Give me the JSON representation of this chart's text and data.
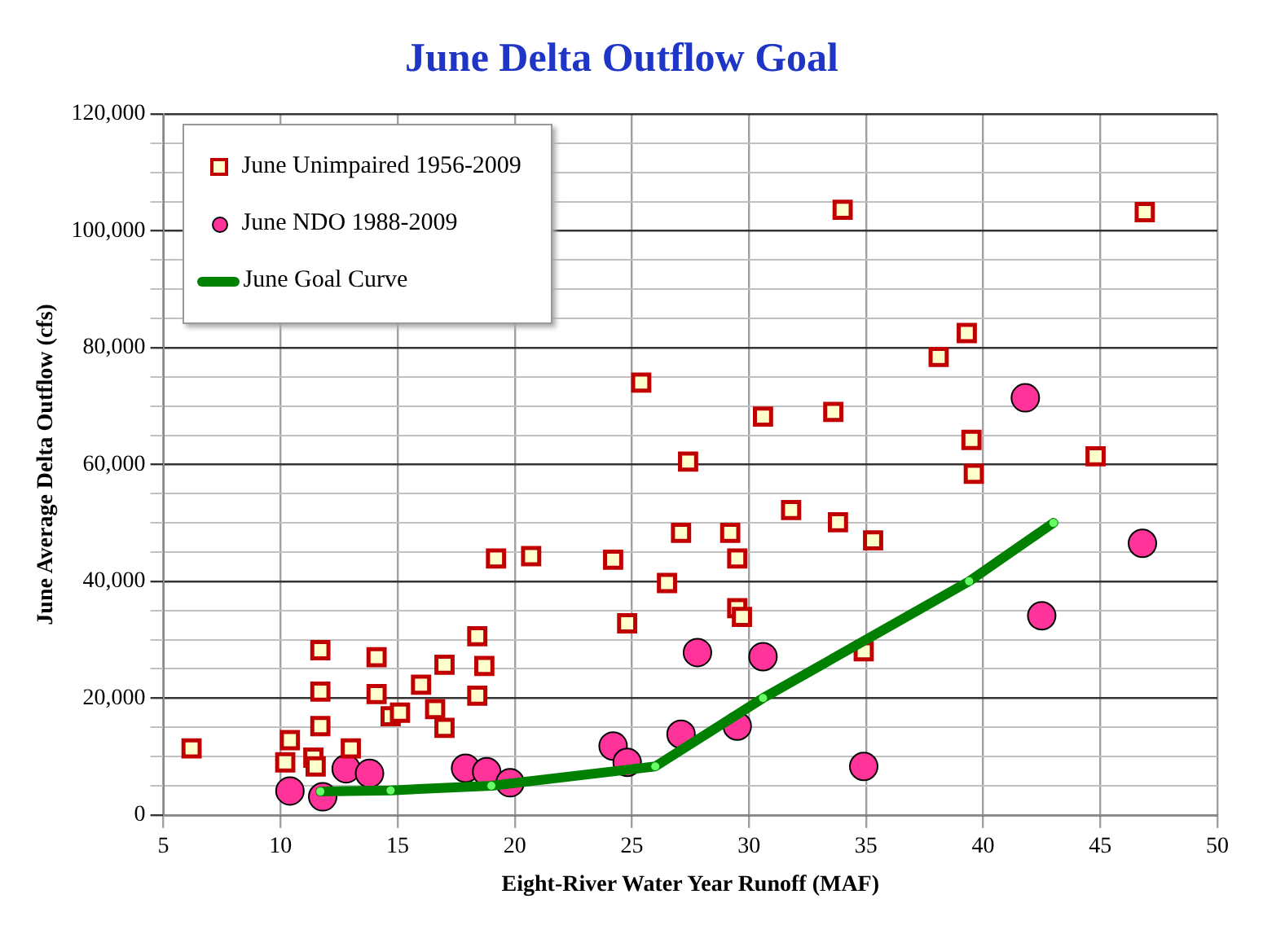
{
  "chart_data": {
    "type": "scatter",
    "title": "June Delta Outflow Goal",
    "xlabel": "Eight-River Water Year Runoff (MAF)",
    "ylabel": "June Average Delta Outflow (cfs)",
    "xlim": [
      5,
      50
    ],
    "xticks": [
      5,
      10,
      15,
      20,
      25,
      30,
      35,
      40,
      45,
      50
    ],
    "ylim": [
      0,
      120000
    ],
    "yticks": [
      {
        "value": 0,
        "label": "0"
      },
      {
        "value": 20000,
        "label": "20,000"
      },
      {
        "value": 40000,
        "label": "40,000"
      },
      {
        "value": 60000,
        "label": "60,000"
      },
      {
        "value": 80000,
        "label": "80,000"
      },
      {
        "value": 100000,
        "label": "100,000"
      },
      {
        "value": 120000,
        "label": "120,000"
      }
    ],
    "grid": true,
    "legend": "top left",
    "series": [
      {
        "name": "June Unimpaired 1956-2009",
        "type": "scatter",
        "marker": "square",
        "color": "#c00000",
        "x": [
          6.2,
          10.4,
          10.2,
          11.7,
          11.7,
          11.7,
          11.4,
          11.5,
          13.0,
          14.1,
          14.1,
          14.4,
          14.7,
          15.1,
          16.0,
          17.0,
          16.6,
          17.0,
          18.4,
          18.7,
          18.4,
          24.8,
          25.4,
          27.4,
          27.1,
          19.2,
          20.7,
          24.2,
          26.5,
          34.0,
          46.9,
          39.3,
          38.1,
          30.6,
          33.6,
          39.5,
          39.6,
          44.8,
          31.8,
          33.8,
          35.3,
          29.2,
          29.5,
          29.5,
          29.7,
          34.9
        ],
        "values": [
          11400,
          12800,
          9000,
          28200,
          21100,
          15200,
          9800,
          8300,
          11400,
          27000,
          20700,
          null,
          16900,
          17500,
          22300,
          25700,
          18100,
          14900,
          30600,
          25500,
          20400,
          32800,
          74000,
          60500,
          48300,
          43900,
          44300,
          43700,
          39700,
          103600,
          103200,
          82500,
          78400,
          68200,
          69000,
          64200,
          58400,
          61400,
          52200,
          50100,
          47000,
          48300,
          43900,
          35400,
          33900,
          28000
        ]
      },
      {
        "name": "June NDO 1988-2009",
        "type": "scatter",
        "marker": "circle",
        "color": "#ff3399",
        "x": [
          10.4,
          11.5,
          11.7,
          11.8,
          12.8,
          13.8,
          17.9,
          18.8,
          19.8,
          24.2,
          24.8,
          27.1,
          27.8,
          29.5,
          30.6,
          34.9,
          41.8,
          42.5,
          46.8
        ],
        "values": [
          4100,
          null,
          null,
          3100,
          7900,
          7100,
          8000,
          7400,
          5500,
          11800,
          9000,
          13800,
          27800,
          15200,
          27100,
          8300,
          71400,
          34100,
          46500
        ]
      },
      {
        "name": "June Goal Curve",
        "type": "line",
        "marker": "circle",
        "line_style": "solid",
        "color": "#008000",
        "x": [
          11.7,
          14.7,
          19.0,
          26.0,
          30.6,
          39.4,
          43.0
        ],
        "values": [
          4000,
          4200,
          5000,
          8300,
          20000,
          40000,
          50000
        ]
      }
    ]
  }
}
